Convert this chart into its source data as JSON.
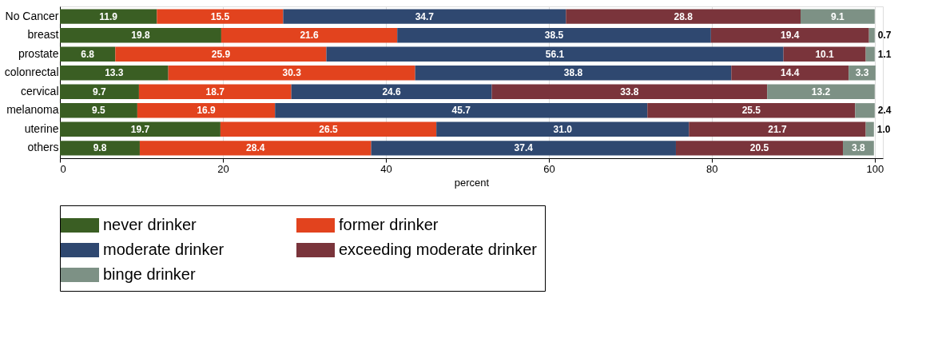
{
  "chart_data": {
    "type": "bar",
    "orientation": "horizontal",
    "stacked": true,
    "xlabel": "percent",
    "categories": [
      "No Cancer",
      "breast",
      "prostate",
      "colonrectal",
      "cervical",
      "melanoma",
      "uterine",
      "others"
    ],
    "series": [
      {
        "name": "never drinker",
        "color": "#3a5e23",
        "values": [
          11.9,
          19.8,
          6.8,
          13.3,
          9.7,
          9.5,
          19.7,
          9.8
        ],
        "value_labels": [
          "11.9",
          "19.8",
          "6.8",
          "13.3",
          "9.7",
          "9.5",
          "19.7",
          "9.8"
        ]
      },
      {
        "name": "former drinker",
        "color": "#e2431e",
        "values": [
          15.5,
          21.6,
          25.9,
          30.3,
          18.7,
          16.9,
          26.5,
          28.4
        ],
        "value_labels": [
          "15.5",
          "21.6",
          "25.9",
          "30.3",
          "18.7",
          "16.9",
          "26.5",
          "28.4"
        ]
      },
      {
        "name": "moderate drinker",
        "color": "#2f4870",
        "values": [
          34.7,
          38.5,
          56.1,
          38.8,
          24.6,
          45.7,
          31.0,
          37.4
        ],
        "value_labels": [
          "34.7",
          "38.5",
          "56.1",
          "38.8",
          "24.6",
          "45.7",
          "31.0",
          "37.4"
        ]
      },
      {
        "name": "exceeding moderate drinker",
        "color": "#7a343b",
        "values": [
          28.8,
          19.4,
          10.1,
          14.4,
          33.8,
          25.5,
          21.7,
          20.5
        ],
        "value_labels": [
          "28.8",
          "19.4",
          "10.1",
          "14.4",
          "33.8",
          "25.5",
          "21.7",
          "20.5"
        ]
      },
      {
        "name": "binge drinker",
        "color": "#7d9185",
        "values": [
          9.1,
          0.7,
          1.1,
          3.3,
          13.2,
          2.4,
          1.0,
          3.8
        ],
        "value_labels": [
          "9.1",
          "0.7",
          "1.1",
          "3.3",
          "13.2",
          "2.4",
          "1.0",
          "3.8"
        ]
      }
    ],
    "xlim": [
      0,
      101
    ],
    "xticks": [
      0,
      20,
      40,
      60,
      80,
      100
    ],
    "grid": "x",
    "legend": "bottom"
  }
}
